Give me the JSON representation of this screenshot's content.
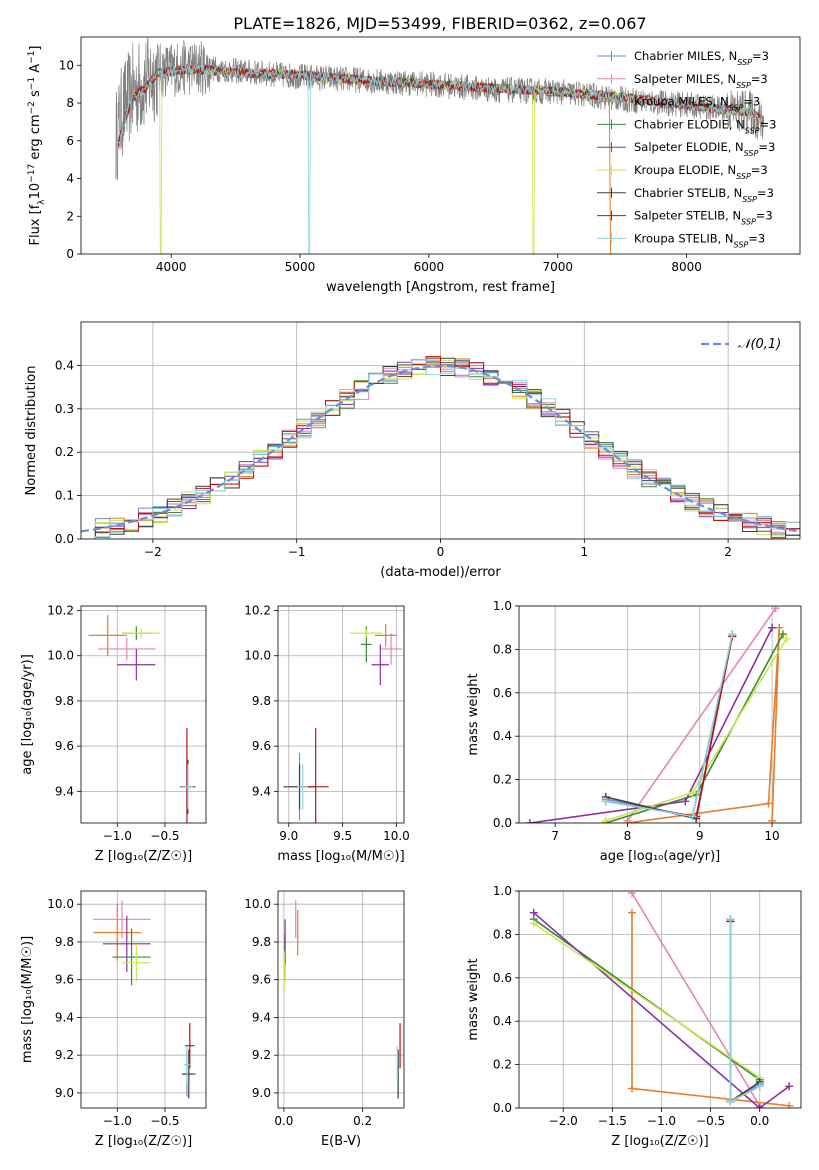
{
  "title": "PLATE=1826, MJD=53499, FIBERID=0362, z=0.067",
  "colors": {
    "Chabrier MILES": "#6a8fd6",
    "Salpeter MILES": "#e585b8",
    "Kroupa MILES": "#e87d2a",
    "Chabrier ELODIE": "#3a8a3a",
    "Salpeter ELODIE": "#8e2fa3",
    "Kroupa ELODIE": "#c6e84a",
    "Chabrier STELIB": "#404040",
    "Salpeter STELIB": "#c01010",
    "Kroupa STELIB": "#8ad3dd",
    "data": "#808080"
  },
  "chart_data": [
    {
      "id": "spectrum",
      "type": "line",
      "xlabel": "wavelength [Angstrom, rest frame]",
      "ylabel_parts": [
        "Flux [f",
        "λ",
        "10",
        "−17",
        " erg cm",
        "−2",
        " s",
        "−1",
        " A",
        "−1",
        "]"
      ],
      "xlim": [
        3300,
        8880
      ],
      "ylim": [
        0,
        11.5
      ],
      "xticks": [
        4000,
        5000,
        6000,
        7000,
        8000
      ],
      "yticks": [
        0,
        2,
        4,
        6,
        8,
        10
      ],
      "legend": [
        "Chabrier MILES",
        "Salpeter MILES",
        "Kroupa MILES",
        "Chabrier ELODIE",
        "Salpeter ELODIE",
        "Kroupa ELODIE",
        "Chabrier STELIB",
        "Salpeter STELIB",
        "Kroupa STELIB"
      ],
      "legend_suffix": ", N",
      "legend_sub": "SSP",
      "legend_eq": "=3",
      "data_continuum": [
        [
          3570,
          6.1
        ],
        [
          3620,
          7.6
        ],
        [
          3700,
          8.6
        ],
        [
          3800,
          9.1
        ],
        [
          3900,
          9.7
        ],
        [
          4000,
          9.8
        ],
        [
          4200,
          9.9
        ],
        [
          4500,
          9.7
        ],
        [
          5000,
          9.4
        ],
        [
          5500,
          9.2
        ],
        [
          6000,
          9.0
        ],
        [
          6500,
          8.7
        ],
        [
          7000,
          8.6
        ],
        [
          7500,
          8.2
        ],
        [
          8000,
          7.9
        ],
        [
          8500,
          7.5
        ],
        [
          8600,
          6.8
        ]
      ],
      "model_continuum": [
        [
          3580,
          5.6
        ],
        [
          3630,
          6.9
        ],
        [
          3700,
          8.3
        ],
        [
          3800,
          8.8
        ],
        [
          3900,
          9.6
        ],
        [
          4000,
          9.7
        ],
        [
          4200,
          9.8
        ],
        [
          4500,
          9.6
        ],
        [
          5000,
          9.5
        ],
        [
          5500,
          9.2
        ],
        [
          6000,
          9.0
        ],
        [
          6500,
          8.8
        ],
        [
          7000,
          8.6
        ],
        [
          7500,
          8.3
        ],
        [
          8000,
          7.9
        ],
        [
          8500,
          7.5
        ],
        [
          8600,
          7.0
        ]
      ]
    },
    {
      "id": "residuals",
      "type": "step",
      "xlabel": "(data-model)/error",
      "ylabel": "Normed distribution",
      "xlim": [
        -2.5,
        2.5
      ],
      "ylim": [
        0,
        0.5
      ],
      "xticks": [
        -2,
        -1,
        0,
        1,
        2
      ],
      "yticks": [
        0.0,
        0.1,
        0.2,
        0.3,
        0.4
      ],
      "legend": "𝒩(0,1)",
      "bin_width": 0.1
    },
    {
      "id": "age_vs_Z",
      "type": "errorbar",
      "xlabel": "Z [log₁₀(Z/Z☉)]",
      "ylabel": "age  [log₁₀(age/yr)]",
      "xlim": [
        -1.38,
        -0.07
      ],
      "ylim": [
        9.26,
        10.22
      ],
      "xticks": [
        -1.0,
        -0.5
      ],
      "yticks": [
        9.4,
        9.6,
        9.8,
        10.0,
        10.2
      ],
      "points": [
        {
          "s": "Chabrier MILES",
          "x": -0.27,
          "y": 9.42,
          "xe": 0.05,
          "ye": 0.1
        },
        {
          "s": "Salpeter MILES",
          "x": -0.9,
          "y": 10.03,
          "xe": 0.3,
          "ye": 0.05
        },
        {
          "s": "Kroupa MILES",
          "x": -1.1,
          "y": 10.09,
          "xe": 0.2,
          "ye": 0.09
        },
        {
          "s": "Chabrier ELODIE",
          "x": -0.8,
          "y": 10.1,
          "xe": 0.15,
          "ye": 0.03
        },
        {
          "s": "Salpeter ELODIE",
          "x": -0.8,
          "y": 9.96,
          "xe": 0.2,
          "ye": 0.07
        },
        {
          "s": "Kroupa ELODIE",
          "x": -0.75,
          "y": 10.1,
          "xe": 0.2,
          "ye": 0.02
        },
        {
          "s": "Chabrier STELIB",
          "x": -0.26,
          "y": 9.42,
          "xe": 0.08,
          "ye": 0.12
        },
        {
          "s": "Salpeter STELIB",
          "x": -0.27,
          "y": 9.42,
          "xe": 0.03,
          "ye": 0.26
        },
        {
          "s": "Kroupa STELIB",
          "x": -0.26,
          "y": 9.42,
          "xe": 0.06,
          "ye": 0.1
        }
      ]
    },
    {
      "id": "age_vs_mass",
      "type": "errorbar",
      "xlabel": "mass [log₁₀(M/M☉)]",
      "ylabel": "",
      "xlim": [
        8.9,
        10.07
      ],
      "ylim": [
        9.26,
        10.22
      ],
      "xticks": [
        9.0,
        9.5,
        10.0
      ],
      "yticks": [
        9.4,
        9.6,
        9.8,
        10.0,
        10.2
      ],
      "points": [
        {
          "s": "Chabrier MILES",
          "x": 9.1,
          "y": 9.42,
          "xe": 0.1,
          "ye": 0.15
        },
        {
          "s": "Salpeter MILES",
          "x": 9.95,
          "y": 10.03,
          "xe": 0.1,
          "ye": 0.07
        },
        {
          "s": "Kroupa MILES",
          "x": 9.9,
          "y": 10.09,
          "xe": 0.1,
          "ye": 0.05
        },
        {
          "s": "Chabrier ELODIE",
          "x": 9.72,
          "y": 10.05,
          "xe": 0.05,
          "ye": 0.08
        },
        {
          "s": "Salpeter ELODIE",
          "x": 9.85,
          "y": 9.96,
          "xe": 0.08,
          "ye": 0.09
        },
        {
          "s": "Kroupa ELODIE",
          "x": 9.72,
          "y": 10.1,
          "xe": 0.15,
          "ye": 0.02
        },
        {
          "s": "Chabrier STELIB",
          "x": 9.1,
          "y": 9.42,
          "xe": 0.15,
          "ye": 0.1
        },
        {
          "s": "Salpeter STELIB",
          "x": 9.25,
          "y": 9.42,
          "xe": 0.12,
          "ye": 0.26
        },
        {
          "s": "Kroupa STELIB",
          "x": 9.13,
          "y": 9.42,
          "xe": 0.05,
          "ye": 0.1
        }
      ]
    },
    {
      "id": "weight_vs_age",
      "type": "line",
      "xlabel": "age  [log₁₀(age/yr)]",
      "ylabel": "mass weight",
      "xlim": [
        6.5,
        10.4
      ],
      "ylim": [
        0,
        1
      ],
      "xticks": [
        7,
        8,
        9,
        10
      ],
      "yticks": [
        0.0,
        0.2,
        0.4,
        0.6,
        0.8,
        1.0
      ],
      "series": [
        {
          "s": "Chabrier MILES",
          "pts": [
            [
              7.7,
              0.11
            ],
            [
              8.9,
              0.03
            ],
            [
              9.45,
              0.86
            ]
          ]
        },
        {
          "s": "Salpeter MILES",
          "pts": [
            [
              8.0,
              0.01
            ],
            [
              10.05,
              0.99
            ]
          ]
        },
        {
          "s": "Kroupa MILES",
          "pts": [
            [
              8.0,
              0.0
            ],
            [
              9.95,
              0.09
            ],
            [
              10.1,
              0.9
            ],
            [
              10.0,
              0.01
            ]
          ]
        },
        {
          "s": "Chabrier ELODIE",
          "pts": [
            [
              7.7,
              0.0
            ],
            [
              8.95,
              0.13
            ],
            [
              10.15,
              0.87
            ]
          ]
        },
        {
          "s": "Salpeter ELODIE",
          "pts": [
            [
              6.65,
              0.0
            ],
            [
              8.8,
              0.1
            ],
            [
              10.0,
              0.9
            ]
          ]
        },
        {
          "s": "Kroupa ELODIE",
          "pts": [
            [
              7.7,
              0.01
            ],
            [
              8.9,
              0.14
            ],
            [
              10.2,
              0.85
            ]
          ]
        },
        {
          "s": "Chabrier STELIB",
          "pts": [
            [
              7.7,
              0.12
            ],
            [
              8.95,
              0.02
            ],
            [
              9.45,
              0.87
            ]
          ]
        },
        {
          "s": "Salpeter STELIB",
          "pts": [
            [
              7.7,
              0.1
            ],
            [
              8.95,
              0.03
            ],
            [
              9.45,
              0.86
            ]
          ]
        },
        {
          "s": "Kroupa STELIB",
          "pts": [
            [
              7.7,
              0.1
            ],
            [
              8.9,
              0.03
            ],
            [
              9.45,
              0.87
            ]
          ]
        }
      ]
    },
    {
      "id": "mass_vs_Z",
      "type": "errorbar",
      "xlabel": "Z [log₁₀(Z/Z☉)]",
      "ylabel": "mass [log₁₀(M/M☉)]",
      "xlim": [
        -1.38,
        -0.07
      ],
      "ylim": [
        8.92,
        10.07
      ],
      "xticks": [
        -1.0,
        -0.5
      ],
      "yticks": [
        9.0,
        9.2,
        9.4,
        9.6,
        9.8,
        10.0
      ],
      "points": [
        {
          "s": "Chabrier MILES",
          "x": -0.27,
          "y": 9.1,
          "xe": 0.05,
          "ye": 0.12
        },
        {
          "s": "Salpeter MILES",
          "x": -0.95,
          "y": 9.92,
          "xe": 0.3,
          "ye": 0.1
        },
        {
          "s": "Kroupa MILES",
          "x": -1.0,
          "y": 9.85,
          "xe": 0.25,
          "ye": 0.15
        },
        {
          "s": "Chabrier ELODIE",
          "x": -0.85,
          "y": 9.72,
          "xe": 0.2,
          "ye": 0.15
        },
        {
          "s": "Salpeter ELODIE",
          "x": -0.9,
          "y": 9.79,
          "xe": 0.25,
          "ye": 0.15
        },
        {
          "s": "Kroupa ELODIE",
          "x": -0.8,
          "y": 9.69,
          "xe": 0.15,
          "ye": 0.1
        },
        {
          "s": "Chabrier STELIB",
          "x": -0.25,
          "y": 9.1,
          "xe": 0.07,
          "ye": 0.13
        },
        {
          "s": "Salpeter STELIB",
          "x": -0.24,
          "y": 9.25,
          "xe": 0.05,
          "ye": 0.12
        },
        {
          "s": "Kroupa STELIB",
          "x": -0.27,
          "y": 9.15,
          "xe": 0.03,
          "ye": 0.1
        }
      ]
    },
    {
      "id": "mass_vs_ebv",
      "type": "errorbar",
      "xlabel": "E(B-V)",
      "ylabel": "",
      "xlim": [
        -0.015,
        0.305
      ],
      "ylim": [
        8.92,
        10.07
      ],
      "xticks": [
        0.0,
        0.2
      ],
      "yticks": [
        9.0,
        9.2,
        9.4,
        9.6,
        9.8,
        10.0
      ],
      "points": [
        {
          "s": "Chabrier MILES",
          "x": 0.29,
          "y": 9.1,
          "xe": 0.0,
          "ye": 0.12
        },
        {
          "s": "Salpeter MILES",
          "x": 0.03,
          "y": 9.92,
          "xe": 0.0,
          "ye": 0.1
        },
        {
          "s": "Kroupa MILES",
          "x": 0.035,
          "y": 9.85,
          "xe": 0.0,
          "ye": 0.12
        },
        {
          "s": "Chabrier ELODIE",
          "x": 0.002,
          "y": 9.72,
          "xe": 0.0,
          "ye": 0.12
        },
        {
          "s": "Salpeter ELODIE",
          "x": 0.003,
          "y": 9.8,
          "xe": 0.0,
          "ye": 0.12
        },
        {
          "s": "Kroupa ELODIE",
          "x": 0.001,
          "y": 9.65,
          "xe": 0.0,
          "ye": 0.1
        },
        {
          "s": "Chabrier STELIB",
          "x": 0.29,
          "y": 9.1,
          "xe": 0.0,
          "ye": 0.13
        },
        {
          "s": "Salpeter STELIB",
          "x": 0.295,
          "y": 9.25,
          "xe": 0.0,
          "ye": 0.12
        },
        {
          "s": "Kroupa STELIB",
          "x": 0.288,
          "y": 9.15,
          "xe": 0.0,
          "ye": 0.1
        }
      ]
    },
    {
      "id": "weight_vs_Z",
      "type": "line",
      "xlabel": "Z [log₁₀(Z/Z☉)]",
      "ylabel": "mass weight",
      "xlim": [
        -2.45,
        0.42
      ],
      "ylim": [
        0,
        1
      ],
      "xticks": [
        -2.0,
        -1.5,
        -1.0,
        -0.5,
        0.0
      ],
      "yticks": [
        0.0,
        0.2,
        0.4,
        0.6,
        0.8,
        1.0
      ],
      "series": [
        {
          "s": "Chabrier MILES",
          "pts": [
            [
              -0.3,
              0.86
            ],
            [
              -0.3,
              0.03
            ],
            [
              0.0,
              0.11
            ]
          ]
        },
        {
          "s": "Salpeter MILES",
          "pts": [
            [
              -1.3,
              0.99
            ],
            [
              0.0,
              0.01
            ]
          ]
        },
        {
          "s": "Kroupa MILES",
          "pts": [
            [
              -1.3,
              0.9
            ],
            [
              -1.3,
              0.09
            ],
            [
              0.3,
              0.01
            ]
          ]
        },
        {
          "s": "Chabrier ELODIE",
          "pts": [
            [
              -2.3,
              0.87
            ],
            [
              0.0,
              0.13
            ]
          ]
        },
        {
          "s": "Salpeter ELODIE",
          "pts": [
            [
              -2.3,
              0.9
            ],
            [
              0.0,
              0.0
            ],
            [
              0.3,
              0.1
            ]
          ]
        },
        {
          "s": "Kroupa ELODIE",
          "pts": [
            [
              -2.3,
              0.85
            ],
            [
              0.0,
              0.14
            ]
          ]
        },
        {
          "s": "Chabrier STELIB",
          "pts": [
            [
              -0.3,
              0.87
            ],
            [
              -0.3,
              0.03
            ],
            [
              0.0,
              0.12
            ]
          ]
        },
        {
          "s": "Salpeter STELIB",
          "pts": [
            [
              -0.3,
              0.86
            ],
            [
              -0.3,
              0.03
            ],
            [
              0.0,
              0.1
            ]
          ]
        },
        {
          "s": "Kroupa STELIB",
          "pts": [
            [
              -0.3,
              0.87
            ],
            [
              -0.3,
              0.03
            ],
            [
              0.0,
              0.1
            ]
          ]
        }
      ]
    }
  ]
}
